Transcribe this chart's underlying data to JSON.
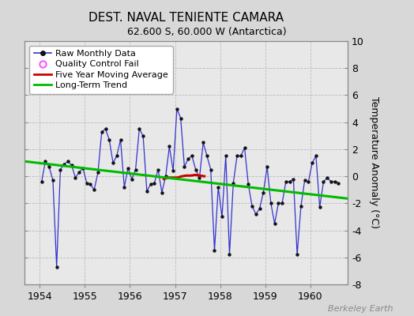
{
  "title": "DEST. NAVAL TENIENTE CAMARA",
  "subtitle": "62.600 S, 60.000 W (Antarctica)",
  "ylabel": "Temperature Anomaly (°C)",
  "watermark": "Berkeley Earth",
  "outer_bg": "#d8d8d8",
  "plot_bg": "#e8e8e8",
  "ylim": [
    -8,
    10
  ],
  "yticks": [
    -8,
    -6,
    -4,
    -2,
    0,
    2,
    4,
    6,
    8,
    10
  ],
  "xlim_start": 1953.67,
  "xlim_end": 1960.83,
  "raw_x": [
    1954.042,
    1954.125,
    1954.208,
    1954.292,
    1954.375,
    1954.458,
    1954.542,
    1954.625,
    1954.708,
    1954.792,
    1954.875,
    1954.958,
    1955.042,
    1955.125,
    1955.208,
    1955.292,
    1955.375,
    1955.458,
    1955.542,
    1955.625,
    1955.708,
    1955.792,
    1955.875,
    1955.958,
    1956.042,
    1956.125,
    1956.208,
    1956.292,
    1956.375,
    1956.458,
    1956.542,
    1956.625,
    1956.708,
    1956.792,
    1956.875,
    1956.958,
    1957.042,
    1957.125,
    1957.208,
    1957.292,
    1957.375,
    1957.458,
    1957.542,
    1957.625,
    1957.708,
    1957.792,
    1957.875,
    1957.958,
    1958.042,
    1958.125,
    1958.208,
    1958.292,
    1958.375,
    1958.458,
    1958.542,
    1958.625,
    1958.708,
    1958.792,
    1958.875,
    1958.958,
    1959.042,
    1959.125,
    1959.208,
    1959.292,
    1959.375,
    1959.458,
    1959.542,
    1959.625,
    1959.708,
    1959.792,
    1959.875,
    1959.958,
    1960.042,
    1960.125,
    1960.208,
    1960.292,
    1960.375,
    1960.458,
    1960.542,
    1960.625
  ],
  "raw_y": [
    -0.4,
    1.1,
    0.7,
    -0.3,
    -6.7,
    0.5,
    0.9,
    1.1,
    0.8,
    -0.1,
    0.3,
    0.6,
    -0.5,
    -0.6,
    -1.0,
    0.3,
    3.3,
    3.5,
    2.7,
    1.0,
    1.5,
    2.7,
    -0.8,
    0.6,
    -0.2,
    0.5,
    3.5,
    3.0,
    -1.1,
    -0.6,
    -0.5,
    0.5,
    -1.2,
    0.0,
    2.2,
    0.4,
    5.0,
    4.3,
    0.7,
    1.3,
    1.5,
    0.5,
    -0.1,
    2.5,
    1.5,
    0.5,
    -5.5,
    -0.8,
    -3.0,
    1.5,
    -5.8,
    -0.5,
    1.5,
    1.5,
    2.1,
    -0.6,
    -2.2,
    -2.8,
    -2.4,
    -1.2,
    0.7,
    -2.0,
    -3.5,
    -2.0,
    -2.0,
    -0.4,
    -0.4,
    -0.2,
    -5.8,
    -2.2,
    -0.3,
    -0.4,
    1.0,
    1.5,
    -2.3,
    -0.4,
    -0.1,
    -0.4,
    -0.4,
    -0.5
  ],
  "moving_avg_x": [
    1956.75,
    1956.85,
    1956.95,
    1957.05,
    1957.15,
    1957.25,
    1957.35,
    1957.45,
    1957.55,
    1957.65
  ],
  "moving_avg_y": [
    -0.2,
    -0.1,
    -0.1,
    -0.1,
    0.0,
    0.05,
    0.05,
    0.1,
    0.05,
    0.0
  ],
  "trend_x": [
    1953.67,
    1960.83
  ],
  "trend_y": [
    1.1,
    -1.65
  ],
  "raw_color": "#3333cc",
  "ma_color": "#cc0000",
  "trend_color": "#00bb00",
  "legend_qc_color": "#ff55ff"
}
